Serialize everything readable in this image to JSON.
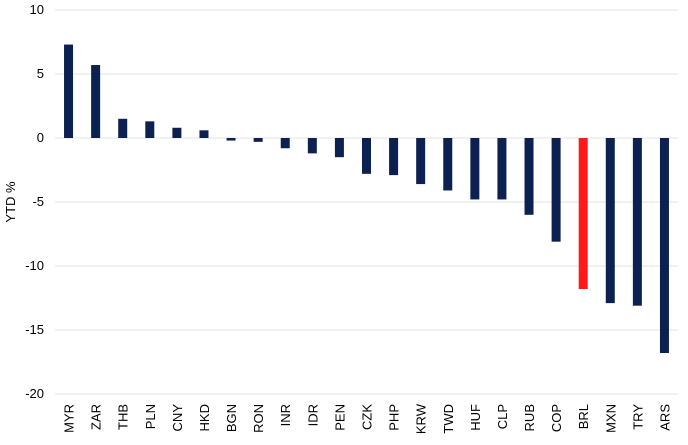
{
  "chart_data": {
    "type": "bar",
    "title": "",
    "xlabel": "",
    "ylabel": "YTD %",
    "ylim": [
      -20,
      10
    ],
    "yticks": [
      10,
      5,
      0,
      -5,
      -10,
      -15,
      -20
    ],
    "grid": true,
    "legend": "none",
    "categories": [
      "MYR",
      "ZAR",
      "THB",
      "PLN",
      "CNY",
      "HKD",
      "BGN",
      "RON",
      "INR",
      "IDR",
      "PEN",
      "CZK",
      "PHP",
      "KRW",
      "TWD",
      "HUF",
      "CLP",
      "RUB",
      "COP",
      "BRL",
      "MXN",
      "TRY",
      "ARS"
    ],
    "values": [
      7.3,
      5.7,
      1.5,
      1.3,
      0.8,
      0.6,
      -0.2,
      -0.3,
      -0.8,
      -1.2,
      -1.5,
      -2.8,
      -2.9,
      -3.6,
      -4.1,
      -4.8,
      -4.8,
      -6.0,
      -8.1,
      -11.8,
      -12.9,
      -13.1,
      -16.8
    ],
    "colors": {
      "default": "#0d2150",
      "highlight": "#ff1a1a"
    },
    "highlight_category": "BRL"
  }
}
